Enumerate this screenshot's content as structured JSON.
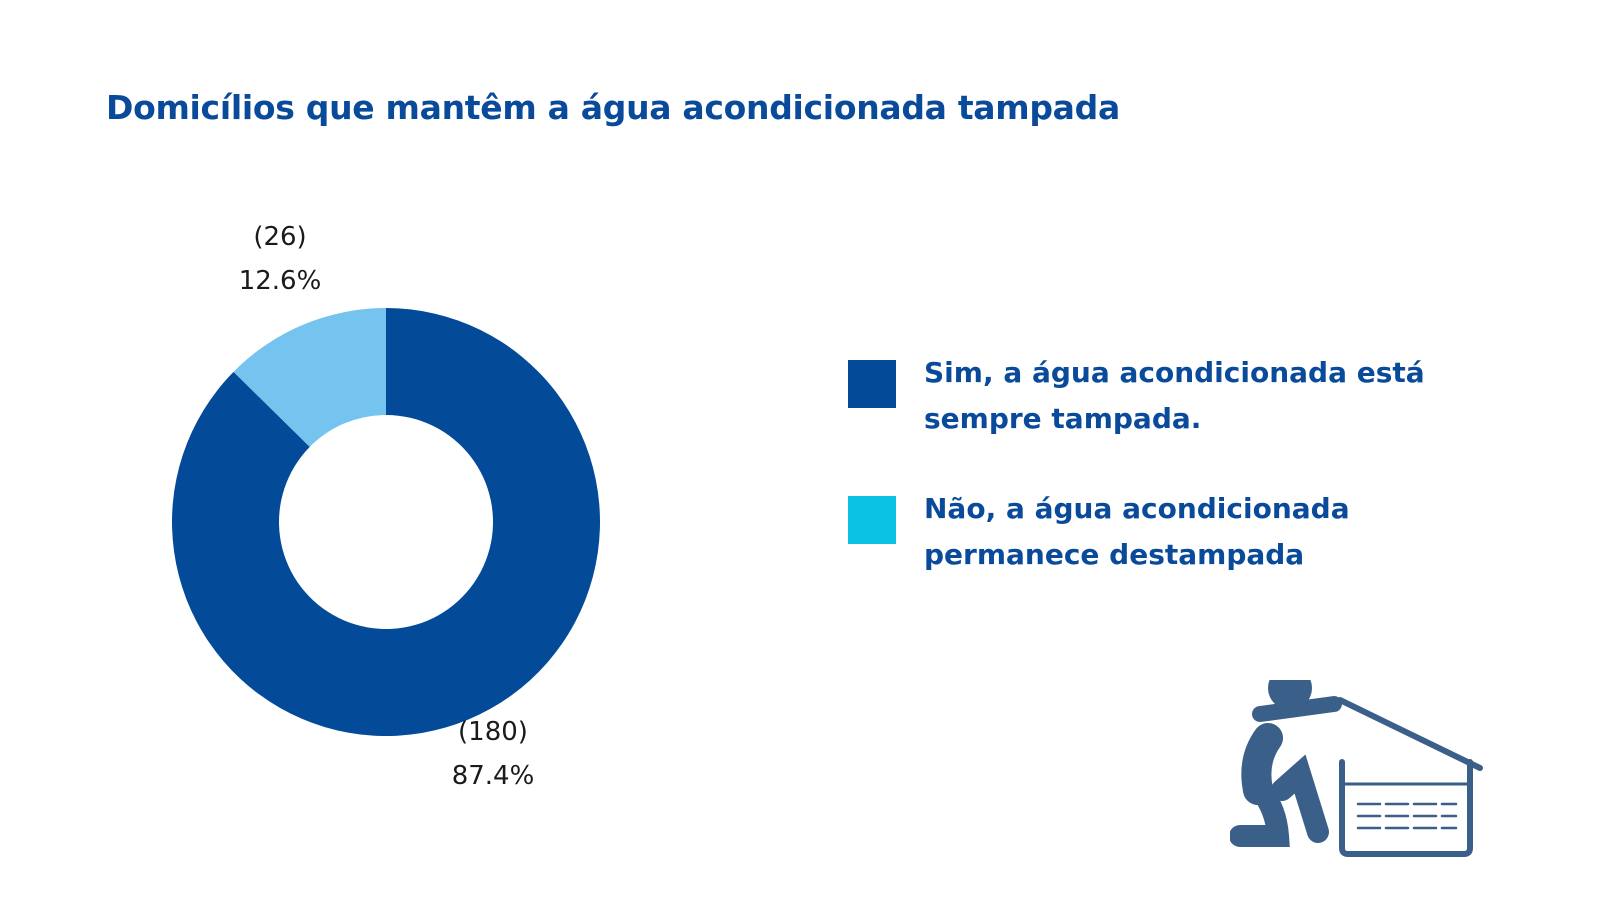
{
  "title": "Domicílios que mantêm a água acondicionada tampada",
  "chart_data": {
    "type": "pie",
    "title": "Domicílios que mantêm a água acondicionada tampada",
    "donut": true,
    "slices": [
      {
        "label": "Sim, a água acondicionada está sempre tampada.",
        "count": 180,
        "count_label": "(180)",
        "percent": 87.4,
        "percent_label": "87.4%",
        "color": "#034a98"
      },
      {
        "label": "Não, a água acondicionada permanece destampada",
        "count": 26,
        "count_label": "(26)",
        "percent": 12.6,
        "percent_label": "12.6%",
        "color": "#75c4ef"
      }
    ],
    "legend": {
      "placement": "right",
      "items": [
        {
          "label": "Sim, a água acondicionada está sempre tampada.",
          "color": "#034a98"
        },
        {
          "label": "Não, a água acondicionada permanece destampada",
          "color": "#0bc2e3"
        }
      ]
    }
  },
  "illustration": {
    "icon": "person-covering-water-tank-icon",
    "color": "#3a5f88"
  }
}
